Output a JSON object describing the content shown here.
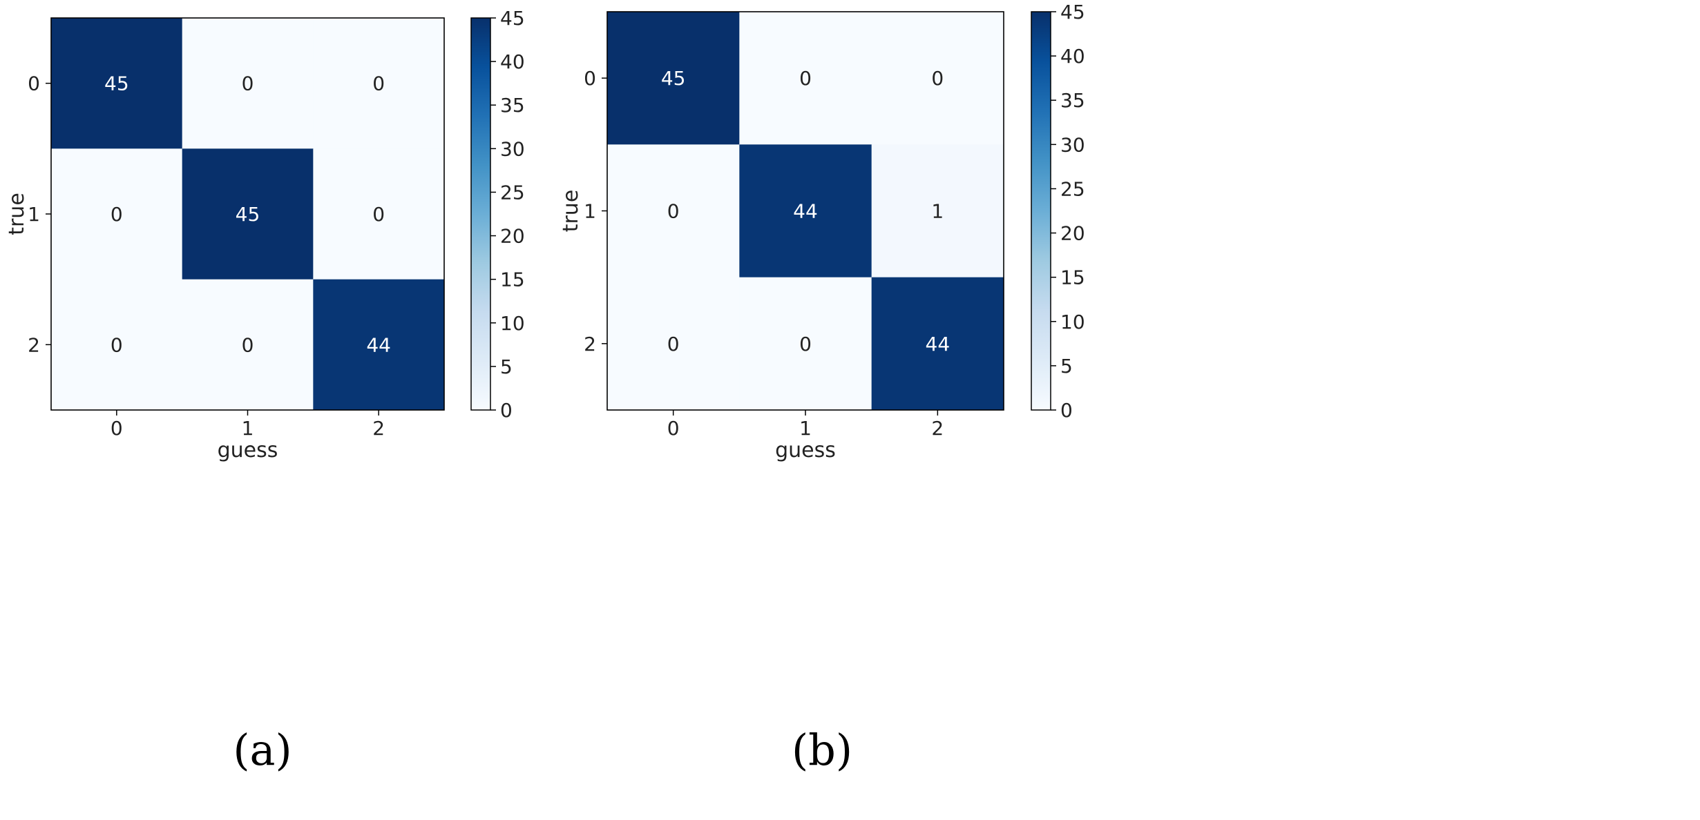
{
  "chart_data": [
    {
      "type": "heatmap",
      "xlabel": "guess",
      "ylabel": "true",
      "x_ticks": [
        "0",
        "1",
        "2"
      ],
      "y_ticks": [
        "0",
        "1",
        "2"
      ],
      "matrix": [
        [
          45,
          0,
          0
        ],
        [
          0,
          45,
          0
        ],
        [
          0,
          0,
          44
        ]
      ],
      "colorbar": {
        "min": 0,
        "max": 45,
        "ticks": [
          "0",
          "5",
          "10",
          "15",
          "20",
          "25",
          "30",
          "35",
          "40",
          "45"
        ],
        "colormap": "Blues"
      },
      "panel_label": "(a)"
    },
    {
      "type": "heatmap",
      "xlabel": "guess",
      "ylabel": "true",
      "x_ticks": [
        "0",
        "1",
        "2"
      ],
      "y_ticks": [
        "0",
        "1",
        "2"
      ],
      "matrix": [
        [
          45,
          0,
          0
        ],
        [
          0,
          44,
          1
        ],
        [
          0,
          0,
          44
        ]
      ],
      "colorbar": {
        "min": 0,
        "max": 45,
        "ticks": [
          "0",
          "5",
          "10",
          "15",
          "20",
          "25",
          "30",
          "35",
          "40",
          "45"
        ],
        "colormap": "Blues"
      },
      "panel_label": "(b)"
    }
  ],
  "colors": {
    "low": "#f7fbff",
    "high": "#08306b",
    "text_dark": "#222222",
    "text_light": "#ffffff"
  }
}
